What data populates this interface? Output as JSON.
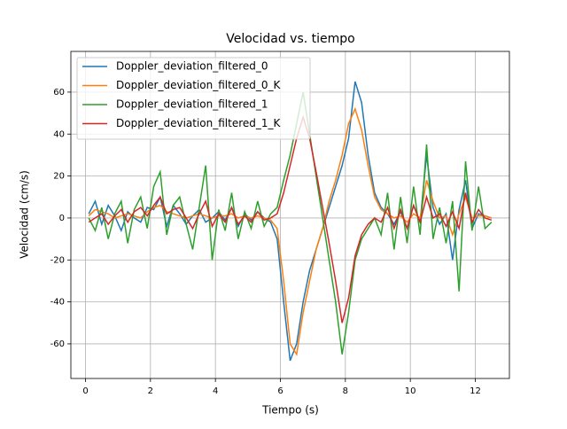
{
  "chart_data": {
    "type": "line",
    "title": "Velocidad vs. tiempo",
    "x_label": "Tiempo (s)",
    "y_label": "Velocidad (cm/s)",
    "x": [
      0.1,
      0.3,
      0.5,
      0.7,
      0.9,
      1.1,
      1.3,
      1.5,
      1.7,
      1.9,
      2.1,
      2.3,
      2.5,
      2.7,
      2.9,
      3.1,
      3.3,
      3.5,
      3.7,
      3.9,
      4.1,
      4.3,
      4.5,
      4.7,
      4.9,
      5.1,
      5.3,
      5.5,
      5.7,
      5.9,
      6.1,
      6.3,
      6.5,
      6.7,
      6.9,
      7.1,
      7.3,
      7.5,
      7.7,
      7.9,
      8.1,
      8.3,
      8.5,
      8.7,
      8.9,
      9.1,
      9.3,
      9.5,
      9.7,
      9.9,
      10.1,
      10.3,
      10.5,
      10.7,
      10.9,
      11.1,
      11.3,
      11.5,
      11.7,
      11.9,
      12.1,
      12.3,
      12.5
    ],
    "series": [
      {
        "name": "Doppler_deviation_filtered_0",
        "color": "#1f77b4",
        "values": [
          2,
          8,
          -3,
          6,
          1,
          -6,
          3,
          0,
          -2,
          5,
          4,
          10,
          -4,
          6,
          2,
          -3,
          1,
          4,
          -2,
          0,
          3,
          -1,
          5,
          -4,
          2,
          -1,
          3,
          0,
          -2,
          -10,
          -40,
          -68,
          -60,
          -40,
          -25,
          -15,
          -5,
          5,
          15,
          25,
          38,
          65,
          55,
          30,
          12,
          5,
          2,
          -3,
          3,
          -5,
          6,
          -2,
          30,
          5,
          -3,
          2,
          -20,
          4,
          18,
          -5,
          2,
          1,
          0
        ]
      },
      {
        "name": "Doppler_deviation_filtered_0_K",
        "color": "#ff7f0e",
        "values": [
          1,
          4,
          3,
          2,
          0,
          1,
          2,
          1,
          0,
          3,
          5,
          6,
          3,
          2,
          1,
          0,
          1,
          2,
          1,
          0,
          1,
          1,
          2,
          0,
          1,
          0,
          1,
          0,
          -1,
          -5,
          -30,
          -60,
          -65,
          -45,
          -30,
          -15,
          -5,
          8,
          18,
          30,
          45,
          52,
          42,
          25,
          10,
          4,
          2,
          0,
          1,
          -2,
          2,
          0,
          18,
          8,
          0,
          1,
          -8,
          2,
          10,
          0,
          1,
          1,
          0
        ]
      },
      {
        "name": "Doppler_deviation_filtered_1",
        "color": "#2ca02c",
        "values": [
          0,
          -6,
          5,
          -10,
          2,
          8,
          -12,
          4,
          10,
          -5,
          15,
          22,
          -8,
          6,
          10,
          -3,
          -15,
          5,
          25,
          -20,
          4,
          -6,
          12,
          -10,
          3,
          -5,
          8,
          -4,
          2,
          5,
          18,
          30,
          45,
          60,
          40,
          20,
          0,
          -20,
          -40,
          -65,
          -45,
          -20,
          -10,
          -5,
          0,
          -8,
          12,
          -15,
          10,
          -12,
          15,
          -8,
          35,
          -10,
          5,
          -12,
          8,
          -35,
          27,
          -6,
          15,
          -5,
          -2
        ]
      },
      {
        "name": "Doppler_deviation_filtered_1_K",
        "color": "#d62728",
        "values": [
          -2,
          0,
          2,
          -3,
          1,
          4,
          -2,
          3,
          5,
          1,
          6,
          10,
          2,
          4,
          5,
          0,
          -5,
          2,
          8,
          -4,
          2,
          -2,
          5,
          -3,
          1,
          -2,
          3,
          -1,
          0,
          2,
          12,
          25,
          38,
          48,
          38,
          22,
          5,
          -12,
          -30,
          -50,
          -38,
          -18,
          -8,
          -3,
          0,
          -2,
          5,
          -5,
          4,
          -5,
          6,
          -2,
          10,
          0,
          2,
          -4,
          3,
          -5,
          12,
          -2,
          4,
          0,
          -1
        ]
      }
    ],
    "xlim": [
      -0.45,
      13.05
    ],
    "ylim": [
      -76.5,
      79.4
    ],
    "xticks": [
      0,
      2,
      4,
      6,
      8,
      10,
      12
    ],
    "yticks": [
      -60,
      -40,
      -20,
      0,
      20,
      40,
      60
    ],
    "grid": true,
    "legend": "upper left"
  }
}
